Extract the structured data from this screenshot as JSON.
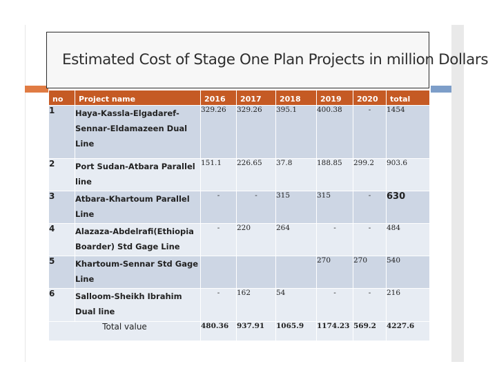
{
  "slide": {
    "title": "Estimated Cost of Stage One Plan Projects in million Dollars"
  },
  "table": {
    "headers": [
      "no",
      "Project name",
      "2016",
      "2017",
      "2018",
      "2019",
      "2020",
      "total"
    ],
    "rows": [
      {
        "no": "1",
        "name": "Haya-Kassla-Elgadaref-Sennar-Eldamazeen Dual Line",
        "y2016": "329.26",
        "y2017": "329.26",
        "y2018": "395.1",
        "y2019": "400.38",
        "y2020": "-",
        "total": "1454"
      },
      {
        "no": "2",
        "name": "Port Sudan-Atbara Parallel line",
        "y2016": "151.1",
        "y2017": "226.65",
        "y2018": "37.8",
        "y2019": "188.85",
        "y2020": "299.2",
        "total": "903.6"
      },
      {
        "no": "3",
        "name": "Atbara-Khartoum Parallel Line",
        "y2016": "-",
        "y2017": "-",
        "y2018": "315",
        "y2019": "315",
        "y2020": "-",
        "total": "630"
      },
      {
        "no": "4",
        "name": "Alazaza-Abdelrafi(Ethiopia Boarder) Std Gage Line",
        "y2016": "-",
        "y2017": "220",
        "y2018": "264",
        "y2019": "-",
        "y2020": "-",
        "total": "484"
      },
      {
        "no": "5",
        "name": "Khartoum-Sennar Std Gage Line",
        "y2016": "",
        "y2017": "",
        "y2018": "",
        "y2019": "270",
        "y2020": "270",
        "total": "540"
      },
      {
        "no": "6",
        "name": "Salloom-Sheikh Ibrahim Dual line",
        "y2016": "-",
        "y2017": "162",
        "y2018": "54",
        "y2019": "-",
        "y2020": "-",
        "total": "216"
      }
    ],
    "total_row": {
      "label": "Total value",
      "y2016": "480.36",
      "y2017": "937.91",
      "y2018": "1065.9",
      "y2019": "1174.23",
      "y2020": "569.2",
      "total": "4227.6"
    }
  },
  "colors": {
    "header_bg": "#c55a24",
    "row_dark": "#cdd6e4",
    "row_light": "#e7ecf3",
    "accent_orange": "#e07b43",
    "accent_blue": "#7d9ec9"
  }
}
